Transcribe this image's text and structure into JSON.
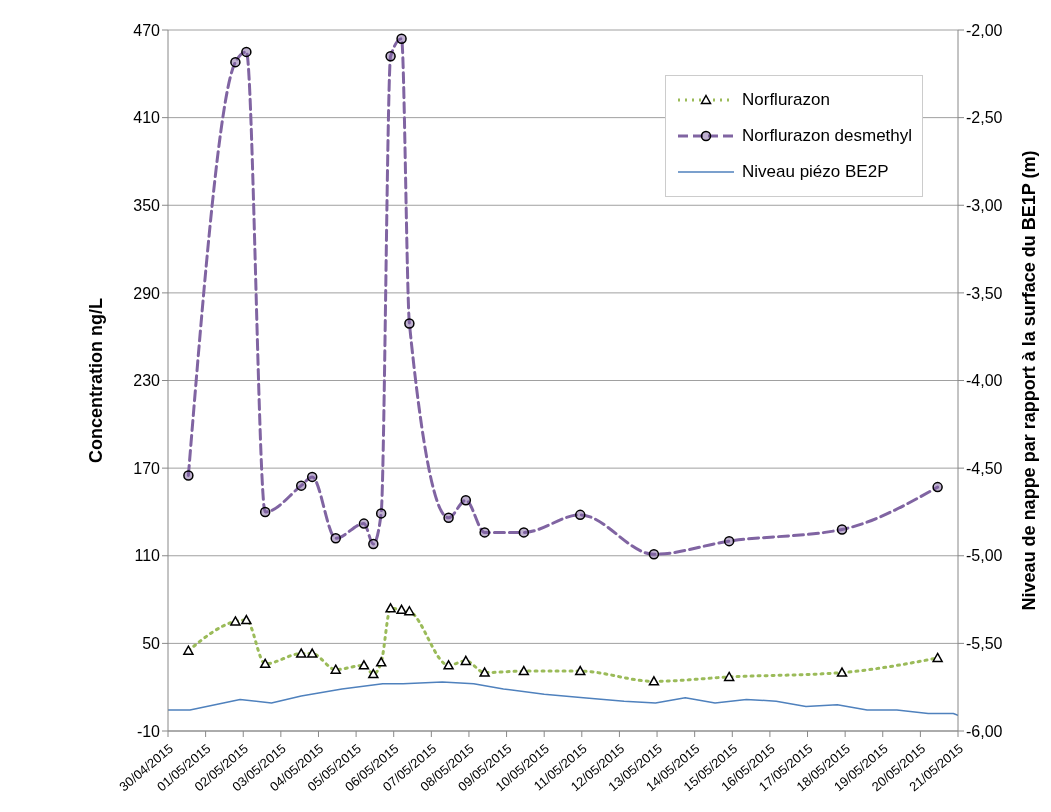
{
  "chart_data": {
    "type": "line",
    "ylabel": "Concentration ng/L",
    "y2label": "Niveau de nappe par rapport à la surface du BE1P (m)",
    "xlim": [
      "2015-04-30",
      "2015-05-21"
    ],
    "xticks": [
      {
        "value": "2015-04-30",
        "label": "30/04/2015"
      },
      {
        "value": "2015-05-01",
        "label": "01/05/2015"
      },
      {
        "value": "2015-05-02",
        "label": "02/05/2015"
      },
      {
        "value": "2015-05-03",
        "label": "03/05/2015"
      },
      {
        "value": "2015-05-04",
        "label": "04/05/2015"
      },
      {
        "value": "2015-05-05",
        "label": "05/05/2015"
      },
      {
        "value": "2015-05-06",
        "label": "06/05/2015"
      },
      {
        "value": "2015-05-07",
        "label": "07/05/2015"
      },
      {
        "value": "2015-05-08",
        "label": "08/05/2015"
      },
      {
        "value": "2015-05-09",
        "label": "09/05/2015"
      },
      {
        "value": "2015-05-10",
        "label": "10/05/2015"
      },
      {
        "value": "2015-05-11",
        "label": "11/05/2015"
      },
      {
        "value": "2015-05-12",
        "label": "12/05/2015"
      },
      {
        "value": "2015-05-13",
        "label": "13/05/2015"
      },
      {
        "value": "2015-05-14",
        "label": "14/05/2015"
      },
      {
        "value": "2015-05-15",
        "label": "15/05/2015"
      },
      {
        "value": "2015-05-16",
        "label": "16/05/2015"
      },
      {
        "value": "2015-05-17",
        "label": "17/05/2015"
      },
      {
        "value": "2015-05-18",
        "label": "18/05/2015"
      },
      {
        "value": "2015-05-19",
        "label": "19/05/2015"
      },
      {
        "value": "2015-05-20",
        "label": "20/05/2015"
      },
      {
        "value": "2015-05-21",
        "label": "21/05/2015"
      }
    ],
    "ylim": [
      -10,
      470
    ],
    "yticks": [
      -10,
      50,
      110,
      170,
      230,
      290,
      350,
      410,
      470
    ],
    "y2lim": [
      -6,
      -2
    ],
    "y2ticks": [
      {
        "value": -6,
        "label": "-6,00"
      },
      {
        "value": -5.5,
        "label": "-5,50"
      },
      {
        "value": -5,
        "label": "-5,00"
      },
      {
        "value": -4.5,
        "label": "-4,50"
      },
      {
        "value": -4,
        "label": "-4,00"
      },
      {
        "value": -3.5,
        "label": "-3,50"
      },
      {
        "value": -3,
        "label": "-3,00"
      },
      {
        "value": -2.5,
        "label": "-2,50"
      },
      {
        "value": -2,
        "label": "-2,00"
      }
    ],
    "grid": "y",
    "legend": "top right",
    "series": [
      {
        "name": "Norflurazon",
        "color": "#9bbb59",
        "marker": "triangle",
        "line_style": "dotted",
        "x": [
          "2015-04-30T13:00",
          "2015-05-01T19:00",
          "2015-05-02T02:00",
          "2015-05-02T14:00",
          "2015-05-03T13:00",
          "2015-05-03T20:00",
          "2015-05-04T11:00",
          "2015-05-05T05:00",
          "2015-05-05T11:00",
          "2015-05-05T16:00",
          "2015-05-05T22:00",
          "2015-05-06T05:00",
          "2015-05-06T10:00",
          "2015-05-07T11:00",
          "2015-05-07T22:00",
          "2015-05-08T10:00",
          "2015-05-09T11:00",
          "2015-05-10T23:00",
          "2015-05-12T22:00",
          "2015-05-14T22:00",
          "2015-05-17T22:00",
          "2015-05-20T11:00"
        ],
        "values": [
          45,
          65,
          66,
          36,
          43,
          43,
          32,
          35,
          29,
          37,
          74,
          73,
          72,
          35,
          38,
          30,
          31,
          31,
          24,
          27,
          30,
          40
        ]
      },
      {
        "name": "Norflurazon desmethyl",
        "color": "#8064a2",
        "marker": "circle",
        "line_style": "dashed",
        "x": [
          "2015-04-30T13:00",
          "2015-05-01T19:00",
          "2015-05-02T02:00",
          "2015-05-02T14:00",
          "2015-05-03T13:00",
          "2015-05-03T20:00",
          "2015-05-04T11:00",
          "2015-05-05T05:00",
          "2015-05-05T11:00",
          "2015-05-05T16:00",
          "2015-05-05T22:00",
          "2015-05-06T05:00",
          "2015-05-06T10:00",
          "2015-05-07T11:00",
          "2015-05-07T22:00",
          "2015-05-08T10:00",
          "2015-05-09T11:00",
          "2015-05-10T23:00",
          "2015-05-12T22:00",
          "2015-05-14T22:00",
          "2015-05-17T22:00",
          "2015-05-20T11:00"
        ],
        "values": [
          165,
          448,
          455,
          140,
          158,
          164,
          122,
          132,
          118,
          139,
          452,
          464,
          269,
          136,
          148,
          126,
          126,
          138,
          111,
          120,
          128,
          157
        ]
      },
      {
        "name": "Niveau piézo BE2P",
        "color": "#4f81bd",
        "marker": "none",
        "line_style": "solid",
        "axis": "y2",
        "x": [
          "2015-04-30T00:00",
          "2015-04-30T14:00",
          "2015-05-01T22:00",
          "2015-05-02T18:00",
          "2015-05-03T13:00",
          "2015-05-04T15:00",
          "2015-05-05T17:00",
          "2015-05-06T06:00",
          "2015-05-07T07:00",
          "2015-05-08T03:00",
          "2015-05-08T22:00",
          "2015-05-10T00:00",
          "2015-05-11T01:00",
          "2015-05-12T03:00",
          "2015-05-12T23:00",
          "2015-05-13T18:00",
          "2015-05-14T13:00",
          "2015-05-15T09:00",
          "2015-05-16T04:00",
          "2015-05-16T23:00",
          "2015-05-17T19:00",
          "2015-05-18T14:00",
          "2015-05-19T09:00",
          "2015-05-20T05:00",
          "2015-05-20T21:00",
          "2015-05-21T00:00"
        ],
        "values": [
          -5.88,
          -5.88,
          -5.82,
          -5.84,
          -5.8,
          -5.76,
          -5.73,
          -5.73,
          -5.72,
          -5.73,
          -5.76,
          -5.79,
          -5.81,
          -5.83,
          -5.84,
          -5.81,
          -5.84,
          -5.82,
          -5.83,
          -5.86,
          -5.85,
          -5.88,
          -5.88,
          -5.9,
          -5.9,
          -5.91
        ]
      }
    ]
  }
}
